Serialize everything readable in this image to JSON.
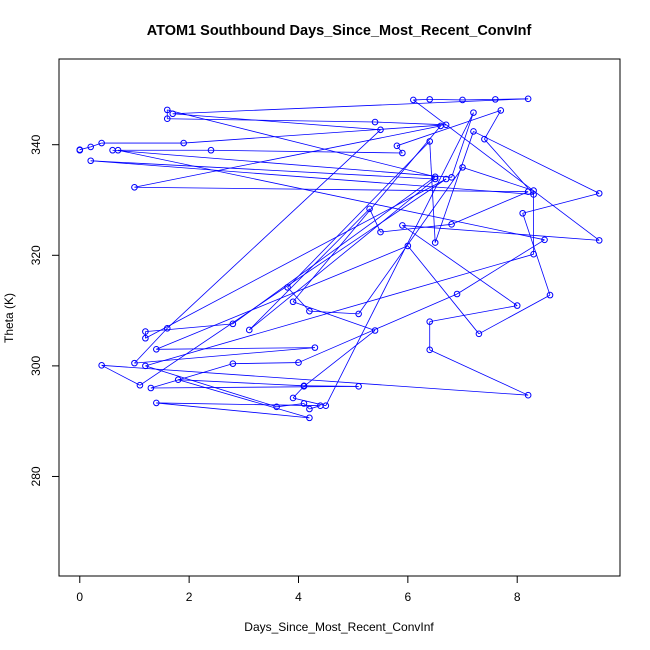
{
  "chart_data": {
    "type": "line",
    "title": "ATOM1 Southbound Days_Since_Most_Recent_ConvInf",
    "xlabel": "Days_Since_Most_Recent_ConvInf",
    "ylabel": "Theta (K)",
    "xlim": [
      -0.38,
      9.88
    ],
    "ylim": [
      262,
      355.5
    ],
    "xticks": [
      "0",
      "2",
      "4",
      "6",
      "8"
    ],
    "yticks": [
      "280",
      "300",
      "320",
      "340"
    ],
    "colors": {
      "series": "#0000ff"
    },
    "grid": false,
    "marker": "open-circle",
    "points": [
      {
        "x": 0.0,
        "y": 339.0
      },
      {
        "x": 0.0,
        "y": 339.1
      },
      {
        "x": 0.2,
        "y": 339.6
      },
      {
        "x": 0.4,
        "y": 340.3
      },
      {
        "x": 1.9,
        "y": 340.3
      },
      {
        "x": 6.7,
        "y": 343.6
      },
      {
        "x": 5.4,
        "y": 344.1
      },
      {
        "x": 1.6,
        "y": 344.7
      },
      {
        "x": 1.6,
        "y": 346.3
      },
      {
        "x": 6.5,
        "y": 334.2
      },
      {
        "x": 2.8,
        "y": 307.6
      },
      {
        "x": 1.2,
        "y": 306.2
      },
      {
        "x": 1.2,
        "y": 305.0
      },
      {
        "x": 6.7,
        "y": 333.8
      },
      {
        "x": 1.1,
        "y": 296.5
      },
      {
        "x": 0.4,
        "y": 300.1
      },
      {
        "x": 8.2,
        "y": 294.7
      },
      {
        "x": 6.4,
        "y": 302.9
      },
      {
        "x": 6.4,
        "y": 308.0
      },
      {
        "x": 8.0,
        "y": 310.9
      },
      {
        "x": 5.9,
        "y": 325.4
      },
      {
        "x": 9.5,
        "y": 322.7
      },
      {
        "x": 6.1,
        "y": 348.1
      },
      {
        "x": 6.4,
        "y": 348.2
      },
      {
        "x": 7.0,
        "y": 348.1
      },
      {
        "x": 7.6,
        "y": 348.2
      },
      {
        "x": 8.2,
        "y": 348.3
      },
      {
        "x": 1.7,
        "y": 345.6
      },
      {
        "x": 5.5,
        "y": 342.7
      },
      {
        "x": 1.6,
        "y": 306.8
      },
      {
        "x": 1.0,
        "y": 300.5
      },
      {
        "x": 4.3,
        "y": 303.3
      },
      {
        "x": 1.4,
        "y": 303.0
      },
      {
        "x": 6.0,
        "y": 321.7
      },
      {
        "x": 7.3,
        "y": 305.8
      },
      {
        "x": 8.6,
        "y": 312.8
      },
      {
        "x": 8.1,
        "y": 327.6
      },
      {
        "x": 9.5,
        "y": 331.2
      },
      {
        "x": 7.2,
        "y": 342.4
      },
      {
        "x": 6.5,
        "y": 322.3
      },
      {
        "x": 6.4,
        "y": 340.6
      },
      {
        "x": 3.8,
        "y": 314.2
      },
      {
        "x": 4.2,
        "y": 309.9
      },
      {
        "x": 5.1,
        "y": 309.4
      },
      {
        "x": 7.0,
        "y": 335.9
      },
      {
        "x": 8.3,
        "y": 331.7
      },
      {
        "x": 8.3,
        "y": 320.2
      },
      {
        "x": 1.2,
        "y": 300.0
      },
      {
        "x": 3.6,
        "y": 292.6
      },
      {
        "x": 4.1,
        "y": 293.2
      },
      {
        "x": 4.2,
        "y": 292.2
      },
      {
        "x": 4.4,
        "y": 292.8
      },
      {
        "x": 1.4,
        "y": 293.3
      },
      {
        "x": 4.2,
        "y": 290.6
      },
      {
        "x": 1.8,
        "y": 297.5
      },
      {
        "x": 4.1,
        "y": 296.4
      },
      {
        "x": 5.1,
        "y": 296.3
      },
      {
        "x": 1.3,
        "y": 296.0
      },
      {
        "x": 2.8,
        "y": 300.4
      },
      {
        "x": 4.0,
        "y": 300.6
      },
      {
        "x": 6.9,
        "y": 313.0
      },
      {
        "x": 8.5,
        "y": 322.8
      },
      {
        "x": 0.7,
        "y": 339.0
      },
      {
        "x": 2.4,
        "y": 339.0
      },
      {
        "x": 5.9,
        "y": 338.5
      },
      {
        "x": 5.8,
        "y": 339.8
      },
      {
        "x": 7.7,
        "y": 346.2
      },
      {
        "x": 7.4,
        "y": 341.0
      },
      {
        "x": 8.3,
        "y": 331.0
      },
      {
        "x": 0.2,
        "y": 337.1
      },
      {
        "x": 6.5,
        "y": 333.8
      },
      {
        "x": 3.1,
        "y": 306.5
      },
      {
        "x": 5.3,
        "y": 328.4
      },
      {
        "x": 5.5,
        "y": 324.2
      },
      {
        "x": 6.8,
        "y": 325.6
      },
      {
        "x": 8.2,
        "y": 331.5
      },
      {
        "x": 1.0,
        "y": 332.3
      },
      {
        "x": 6.6,
        "y": 343.4
      },
      {
        "x": 3.9,
        "y": 311.6
      },
      {
        "x": 5.4,
        "y": 306.4
      },
      {
        "x": 4.1,
        "y": 296.3
      },
      {
        "x": 3.9,
        "y": 294.2
      },
      {
        "x": 4.5,
        "y": 292.8
      },
      {
        "x": 7.2,
        "y": 345.8
      },
      {
        "x": 6.8,
        "y": 334.1
      },
      {
        "x": 0.6,
        "y": 339.0
      }
    ]
  }
}
